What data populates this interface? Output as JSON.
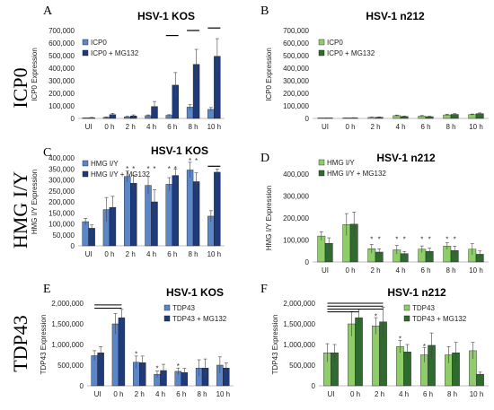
{
  "row_labels": [
    "ICP0",
    "HMG I/Y",
    "TDP43"
  ],
  "colors": {
    "kos_light": "#5b86c8",
    "kos_dark": "#1f3a7a",
    "n212_light": "#8fcc6a",
    "n212_dark": "#2f6b2f",
    "bar_edge": "#1a1a1a"
  },
  "chart_data": [
    {
      "type": "bar",
      "letter": "A",
      "title": "HSV-1 KOS",
      "ylabel": "ICP0 Expression",
      "categories": [
        "UI",
        "0 h",
        "2 h",
        "4 h",
        "6 h",
        "8 h",
        "10 h"
      ],
      "ylim": [
        0,
        700000
      ],
      "yticks": [
        "0",
        "100,000",
        "200,000",
        "300,000",
        "400,000",
        "500,000",
        "600,000",
        "700,000"
      ],
      "palette": "kos",
      "series": [
        {
          "name": "ICP0",
          "values": [
            3000,
            8000,
            12000,
            22000,
            25000,
            90000,
            72000
          ],
          "errors": [
            2000,
            4000,
            5000,
            6000,
            5000,
            20000,
            15000
          ]
        },
        {
          "name": "ICP0 + MG132",
          "values": [
            5000,
            30000,
            20000,
            95000,
            265000,
            430000,
            495000
          ],
          "errors": [
            3000,
            10000,
            8000,
            40000,
            100000,
            120000,
            140000
          ]
        }
      ],
      "brackets": [
        [
          4,
          660000
        ],
        [
          5,
          700000
        ],
        [
          6,
          720000
        ]
      ],
      "stars": []
    },
    {
      "type": "bar",
      "letter": "B",
      "title": "HSV-1 n212",
      "ylabel": "ICP0 Expression",
      "categories": [
        "UI",
        "0 h",
        "2 h",
        "4 h",
        "6 h",
        "8 h",
        "10 h"
      ],
      "ylim": [
        0,
        700000
      ],
      "yticks": [
        "0",
        "100,000",
        "200,000",
        "300,000",
        "400,000",
        "500,000",
        "600,000",
        "700,000"
      ],
      "palette": "n212",
      "series": [
        {
          "name": "ICP0",
          "values": [
            1000,
            3000,
            8000,
            22000,
            18000,
            28000,
            30000
          ],
          "errors": [
            1000,
            2000,
            3000,
            5000,
            5000,
            6000,
            5000
          ]
        },
        {
          "name": "ICP0 + MG132",
          "values": [
            2000,
            4000,
            9000,
            15000,
            14000,
            32000,
            38000
          ],
          "errors": [
            1000,
            2000,
            3000,
            4000,
            4000,
            6000,
            6000
          ]
        }
      ],
      "brackets": [],
      "stars": []
    },
    {
      "type": "bar",
      "letter": "C",
      "title": "HSV-1 KOS",
      "ylabel": "HMG I/Y Expression",
      "categories": [
        "UI",
        "0 h",
        "2 h",
        "4 h",
        "6 h",
        "8 h",
        "10 h"
      ],
      "ylim": [
        0,
        400000
      ],
      "yticks": [
        "0",
        "50,000",
        "100,000",
        "150,000",
        "200,000",
        "250,000",
        "300,000",
        "350,000",
        "400,000"
      ],
      "palette": "kos",
      "series": [
        {
          "name": "HMG I/Y",
          "values": [
            110000,
            165000,
            315000,
            275000,
            280000,
            345000,
            135000
          ],
          "errors": [
            15000,
            55000,
            25000,
            40000,
            30000,
            35000,
            25000
          ]
        },
        {
          "name": "HMG I/Y + MG132",
          "values": [
            80000,
            175000,
            285000,
            200000,
            320000,
            292000,
            335000
          ],
          "errors": [
            15000,
            50000,
            35000,
            55000,
            30000,
            40000,
            15000
          ]
        }
      ],
      "brackets": [
        [
          6,
          362000
        ]
      ],
      "stars": [
        [
          2,
          0,
          352000
        ],
        [
          2,
          1,
          352000
        ],
        [
          3,
          0,
          352000
        ],
        [
          3,
          1,
          352000
        ],
        [
          4,
          0,
          352000
        ],
        [
          4,
          1,
          352000
        ],
        [
          5,
          0,
          388000
        ],
        [
          5,
          1,
          388000
        ]
      ]
    },
    {
      "type": "bar",
      "letter": "D",
      "title": "HSV-1 n212",
      "ylabel": "HMG I/Y Expression",
      "categories": [
        "UI",
        "0 h",
        "2 h",
        "4 h",
        "6 h",
        "8 h",
        "10 h"
      ],
      "ylim": [
        0,
        400000
      ],
      "yticks": [
        "0",
        "100,000",
        "200,000",
        "300,000",
        "400,000"
      ],
      "palette": "n212",
      "series": [
        {
          "name": "HMG I/Y",
          "values": [
            118000,
            170000,
            60000,
            55000,
            58000,
            72000,
            58000
          ],
          "errors": [
            20000,
            50000,
            20000,
            20000,
            15000,
            15000,
            25000
          ]
        },
        {
          "name": "HMG I/Y + MG132",
          "values": [
            85000,
            172000,
            45000,
            38000,
            48000,
            52000,
            35000
          ],
          "errors": [
            25000,
            55000,
            15000,
            10000,
            15000,
            20000,
            15000
          ]
        }
      ],
      "brackets": [],
      "stars": [
        [
          2,
          0,
          105000
        ],
        [
          2,
          1,
          105000
        ],
        [
          3,
          0,
          105000
        ],
        [
          3,
          1,
          105000
        ],
        [
          4,
          0,
          105000
        ],
        [
          4,
          1,
          105000
        ],
        [
          5,
          0,
          105000
        ],
        [
          5,
          1,
          105000
        ]
      ]
    },
    {
      "type": "bar",
      "letter": "E",
      "title": "HSV-1 KOS",
      "ylabel": "TDP43 Expression",
      "categories": [
        "UI",
        "0 h",
        "2 h",
        "4 h",
        "6 h",
        "8 h",
        "10 h"
      ],
      "ylim": [
        0,
        2000000
      ],
      "yticks": [
        "0",
        "500,000",
        "1,000,000",
        "1,500,000",
        "2,000,000"
      ],
      "palette": "kos",
      "series": [
        {
          "name": "TDP43",
          "values": [
            730000,
            1500000,
            570000,
            280000,
            350000,
            430000,
            500000
          ],
          "errors": [
            120000,
            250000,
            150000,
            80000,
            80000,
            200000,
            200000
          ]
        },
        {
          "name": "TDP43 + MG132",
          "values": [
            800000,
            1650000,
            560000,
            370000,
            320000,
            430000,
            430000
          ],
          "errors": [
            150000,
            200000,
            160000,
            150000,
            100000,
            220000,
            120000
          ]
        }
      ],
      "brackets": [],
      "spans": [
        [
          0,
          1,
          1960000
        ],
        [
          0,
          1,
          1880000
        ]
      ],
      "stars": [
        [
          2,
          0,
          770000
        ],
        [
          3,
          0,
          420000
        ],
        [
          4,
          0,
          480000
        ]
      ]
    },
    {
      "type": "bar",
      "letter": "F",
      "title": "HSV-1 n212",
      "ylabel": "TDP43 Expression",
      "categories": [
        "UI",
        "0 h",
        "2 h",
        "4 h",
        "6 h",
        "8 h",
        "10 h"
      ],
      "ylim": [
        0,
        2000000
      ],
      "yticks": [
        "0",
        "500,000",
        "1,000,000",
        "1,500,000",
        "2,000,000"
      ],
      "palette": "n212",
      "series": [
        {
          "name": "TDP43",
          "values": [
            800000,
            1500000,
            1450000,
            950000,
            750000,
            750000,
            850000
          ],
          "errors": [
            220000,
            300000,
            200000,
            150000,
            180000,
            200000,
            200000
          ]
        },
        {
          "name": "TDP43 + MG132",
          "values": [
            800000,
            1650000,
            1550000,
            820000,
            980000,
            800000,
            280000
          ],
          "errors": [
            200000,
            200000,
            350000,
            180000,
            300000,
            250000,
            50000
          ]
        }
      ],
      "brackets": [],
      "spans": [
        [
          0,
          2,
          2000000
        ],
        [
          0,
          2,
          1930000
        ],
        [
          0,
          2,
          1860000
        ],
        [
          0,
          1,
          1790000
        ]
      ],
      "stars": [
        [
          2,
          0,
          1680000
        ],
        [
          3,
          0,
          1140000
        ],
        [
          4,
          0,
          960000
        ]
      ]
    }
  ]
}
